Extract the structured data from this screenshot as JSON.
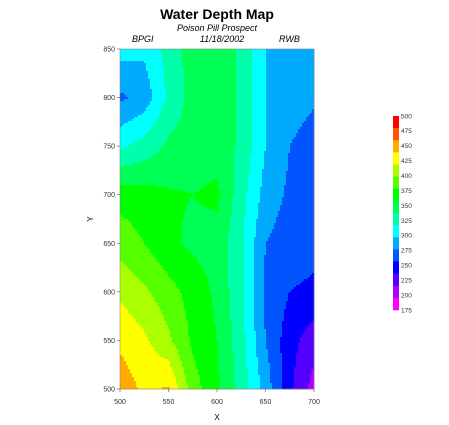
{
  "chart_data": {
    "type": "heatmap",
    "title": "Water Depth Map",
    "subtitle": "Poison Pill Prospect",
    "header_left": "BPGI",
    "header_center": "11/18/2002",
    "header_right": "RWB",
    "xlabel": "X",
    "ylabel": "Y",
    "xlim": [
      500,
      700
    ],
    "ylim": [
      500,
      850
    ],
    "x_ticks": [
      500,
      550,
      600,
      650,
      700
    ],
    "y_ticks": [
      500,
      550,
      600,
      650,
      700,
      750,
      800,
      850
    ],
    "x": [
      500,
      525,
      550,
      575,
      600,
      625,
      650,
      675,
      700
    ],
    "y": [
      500,
      550,
      600,
      650,
      700,
      750,
      800,
      850
    ],
    "z": [
      [
        490,
        470,
        478,
        412,
        380,
        340,
        290,
        230,
        190
      ],
      [
        470,
        455,
        430,
        395,
        375,
        335,
        275,
        235,
        210
      ],
      [
        445,
        430,
        410,
        390,
        370,
        330,
        270,
        250,
        245
      ],
      [
        415,
        400,
        380,
        370,
        365,
        330,
        275,
        262,
        258
      ],
      [
        390,
        385,
        378,
        375,
        380,
        335,
        290,
        270,
        262
      ],
      [
        320,
        335,
        355,
        362,
        365,
        345,
        300,
        275,
        265
      ],
      [
        270,
        285,
        330,
        360,
        365,
        345,
        300,
        285,
        278
      ],
      [
        310,
        305,
        335,
        362,
        365,
        345,
        300,
        290,
        285
      ]
    ],
    "colorbar": {
      "levels": [
        175,
        200,
        225,
        250,
        275,
        300,
        325,
        350,
        375,
        400,
        425,
        450,
        475,
        500
      ],
      "colors": [
        "#ff00ff",
        "#aa00ff",
        "#5500ff",
        "#0000ff",
        "#0055ff",
        "#00aaff",
        "#00ffff",
        "#00ffaa",
        "#00ff55",
        "#00ff00",
        "#55ff00",
        "#aaff00",
        "#ffff00",
        "#ffaa00",
        "#ff5500",
        "#ff0000"
      ]
    }
  }
}
